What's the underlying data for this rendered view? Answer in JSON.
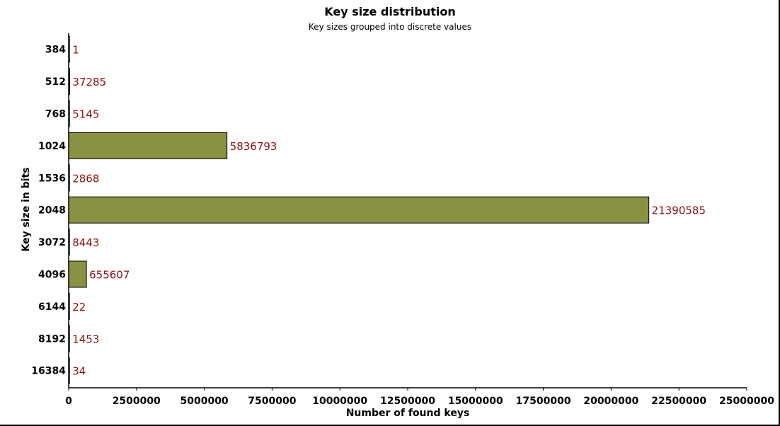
{
  "chart_data": {
    "type": "bar",
    "orientation": "horizontal",
    "title": "Key size distribution",
    "subtitle": "Key sizes grouped into discrete values",
    "xlabel": "Number of found keys",
    "ylabel": "Key size in bits",
    "categories": [
      "384",
      "512",
      "768",
      "1024",
      "1536",
      "2048",
      "3072",
      "4096",
      "6144",
      "8192",
      "16384"
    ],
    "values": [
      1,
      37285,
      5145,
      5836793,
      2868,
      21390585,
      8443,
      655607,
      22,
      1453,
      34
    ],
    "data_labels": [
      "1",
      "37285",
      "5145",
      "5836793",
      "2868",
      "21390585",
      "8443",
      "655607",
      "22",
      "1453",
      "34"
    ],
    "xlim": [
      0,
      25000000
    ],
    "xticks": [
      0,
      2500000,
      5000000,
      7500000,
      10000000,
      12500000,
      15000000,
      17500000,
      20000000,
      22500000,
      25000000
    ],
    "xtick_labels": [
      "0",
      "2500000",
      "5000000",
      "7500000",
      "10000000",
      "12500000",
      "15000000",
      "17500000",
      "20000000",
      "22500000",
      "25000000"
    ],
    "grid": false,
    "colors": {
      "bar_fill": "#8a9143",
      "bar_stroke": "#000000",
      "data_label": "#8b1010",
      "axis": "#000000"
    }
  }
}
